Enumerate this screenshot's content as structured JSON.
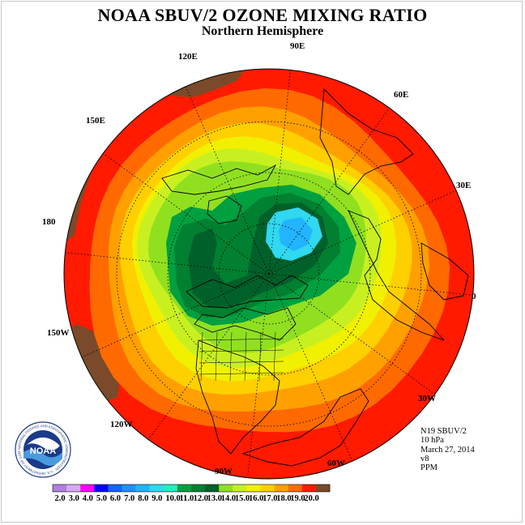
{
  "title": "NOAA SBUV/2 OZONE MIXING RATIO",
  "subtitle": "Northern Hemisphere",
  "longitude_labels": {
    "e90": "90E",
    "e120": "120E",
    "e60": "60E",
    "e150": "150E",
    "e30": "30E",
    "lon180": "180",
    "lon0": "0",
    "w150": "150W",
    "w30": "30W",
    "w120": "120W",
    "w60": "60W",
    "w90": "90W"
  },
  "info": {
    "satellite": "N19 SBUV/2",
    "level": "10 hPa",
    "date": "March 27, 2014",
    "version": "v8",
    "units": "PPM"
  },
  "logo": {
    "text": "NOAA",
    "ring_text": "NATIONAL OCEANIC AND ATMOSPHERIC ADMINISTRATION · U.S. DEPARTMENT OF COMMERCE"
  },
  "colorbar": {
    "ticks": [
      "2.0",
      "3.0",
      "4.0",
      "5.0",
      "6.0",
      "7.0",
      "8.0",
      "9.0",
      "10.0",
      "11.0",
      "12.0",
      "13.0",
      "14.0",
      "15.0",
      "16.0",
      "17.0",
      "18.0",
      "19.0",
      "20.0"
    ],
    "colors": [
      "#b07fe0",
      "#d8a8f0",
      "#ff00ff",
      "#0000ff",
      "#1464ff",
      "#1e90ff",
      "#22b4ff",
      "#30d8f0",
      "#20f0c0",
      "#00a040",
      "#008030",
      "#00602a",
      "#90e020",
      "#c8f020",
      "#f0f000",
      "#ffd000",
      "#ffa000",
      "#ff6a00",
      "#ff1a00",
      "#7a4a2a"
    ]
  },
  "map_colors": {
    "brown": "#7a4a2a",
    "red": "#ff1a00",
    "orange_red": "#ff6a00",
    "orange": "#ffa000",
    "gold": "#ffd000",
    "yellow": "#f0f000",
    "yellow_green": "#c8f020",
    "light_green": "#90e020",
    "green": "#00a040",
    "dark_green": "#008030",
    "darkest_green": "#00602a",
    "cyan": "#30d8f0",
    "light_blue": "#22b4ff"
  }
}
